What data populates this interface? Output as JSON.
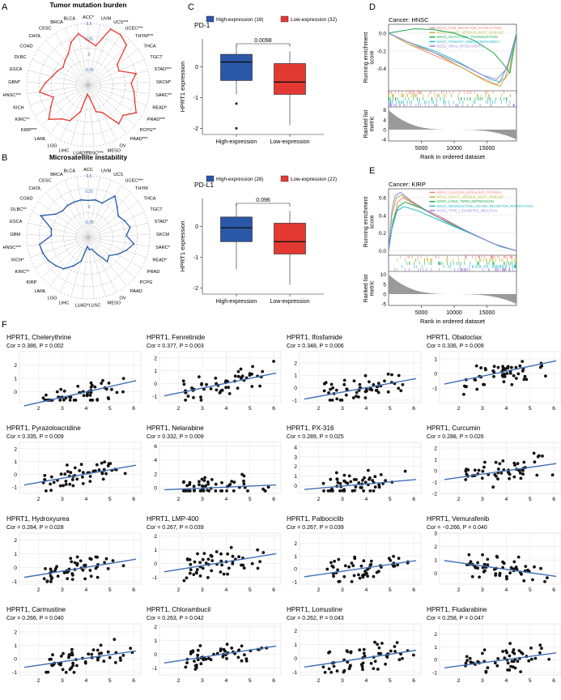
{
  "panel_labels": {
    "a": "A",
    "b": "B",
    "c": "C",
    "d": "D",
    "e": "E",
    "f": "F"
  },
  "colors": {
    "tmb": "#e8392f",
    "msi": "#2458a6",
    "high": "#2b57a7",
    "low": "#e23a33",
    "trend": "#3f6fb5",
    "grid": "#d9d9d9"
  },
  "chart_data": [
    {
      "id": "A",
      "type": "radar",
      "title": "Tumor mutation burden",
      "rings": [
        "0.5",
        "0.25",
        "0",
        "-0.25"
      ],
      "rlim": [
        -0.5,
        0.5
      ],
      "categories": [
        "ACC*",
        "UVM",
        "UCS***",
        "UCEC***",
        "THYM***",
        "THCA",
        "TGCT",
        "STAD***",
        "SKCM*",
        "SARC**",
        "READ*",
        "PRAD***",
        "PCPG**",
        "PAAD***",
        "OV",
        "MESO",
        "LUSC***",
        "LUAD***",
        "LIHC",
        "LGG",
        "LAML",
        "KIRP***",
        "KIRC**",
        "KICH",
        "HNSC***",
        "GBM*",
        "ESCA",
        "DLBC",
        "COAD",
        "CHOL",
        "CESC",
        "BRCA",
        "BLCA"
      ],
      "values": [
        0.22,
        0.15,
        0.48,
        0.47,
        0.4,
        0.08,
        0.05,
        0.3,
        0.2,
        0.25,
        0.3,
        0.4,
        0.25,
        0.3,
        0.0,
        -0.05,
        -0.3,
        -0.35,
        -0.05,
        0.15,
        0.2,
        0.35,
        0.2,
        0.1,
        0.3,
        0.2,
        0.1,
        0.05,
        0.0,
        0.05,
        0.1,
        0.25,
        0.35
      ]
    },
    {
      "id": "B",
      "type": "radar",
      "title": "Microsatellite instability",
      "rings": [
        "0.5",
        "0.25",
        "0",
        "-0.25"
      ],
      "rlim": [
        -0.5,
        0.5
      ],
      "categories": [
        "ACC",
        "UVM",
        "UCS",
        "UCEC***",
        "THYM",
        "THCA",
        "TGCT",
        "STAD*",
        "SKCM",
        "SARC*",
        "READ*",
        "PRAD",
        "PCPG",
        "PAAD",
        "OV",
        "MESO",
        "LUSC",
        "LUAD*",
        "LIHC",
        "LGG",
        "LAML",
        "KIRP",
        "KIRC**",
        "KICH*",
        "HNSC***",
        "GBM",
        "ESCA",
        "DLBC**",
        "COAD",
        "CHOL",
        "CESC",
        "BRCA",
        "BLCA"
      ],
      "values": [
        0.1,
        0.12,
        0.1,
        0.3,
        0.18,
        0.1,
        0.15,
        0.2,
        0.12,
        0.25,
        0.15,
        0.05,
        -0.05,
        0.0,
        -0.2,
        -0.3,
        -0.3,
        -0.35,
        -0.1,
        0.02,
        0.15,
        0.2,
        0.25,
        0.28,
        0.3,
        0.1,
        0.12,
        0.35,
        0.15,
        0.1,
        0.12,
        0.12,
        0.12
      ]
    },
    {
      "id": "C1",
      "type": "box",
      "title": "PD-1",
      "ylabel": "HPRT1 expression",
      "ylim": [
        -2.2,
        0.9
      ],
      "yticks": [
        0,
        -1,
        -2
      ],
      "pvalue": "0.0098",
      "legend": [
        "High-expression (16)",
        "Low-expression (32)"
      ],
      "categories": [
        "High-expression",
        "Low-expression"
      ],
      "boxes": [
        {
          "q1": -0.45,
          "median": 0.15,
          "q3": 0.4,
          "min": -0.9,
          "max": 0.7,
          "outliers": [
            -1.2,
            -2.0
          ]
        },
        {
          "q1": -0.9,
          "median": -0.5,
          "q3": 0.1,
          "min": -1.9,
          "max": 0.5,
          "outliers": []
        }
      ]
    },
    {
      "id": "C2",
      "type": "box",
      "title": "PD-L1",
      "ylabel": "HPRT1 expression",
      "ylim": [
        -2.2,
        0.9
      ],
      "yticks": [
        0,
        -1,
        -2
      ],
      "pvalue": "0.096",
      "legend": [
        "High-expression (26)",
        "Low-expression (22)"
      ],
      "categories": [
        "High-expression",
        "Low-expression"
      ],
      "boxes": [
        {
          "q1": -0.5,
          "median": -0.05,
          "q3": 0.3,
          "min": -1.4,
          "max": 0.75,
          "outliers": []
        },
        {
          "q1": -0.9,
          "median": -0.5,
          "q3": 0.1,
          "min": -1.9,
          "max": 0.5,
          "outliers": []
        }
      ]
    },
    {
      "id": "D",
      "type": "gsea",
      "title": "Cancer: HNSC",
      "ylabel_top": [
        "Running enrichment",
        "score"
      ],
      "ylabel_bottom": [
        "Ranked list",
        "metric"
      ],
      "xlabel": "Rank in ordered dataset",
      "xlim": [
        0,
        19500
      ],
      "xticks": [
        5000,
        10000,
        15000
      ],
      "ylim": [
        -0.65,
        0.1
      ],
      "yticks": [
        0.0,
        -0.2,
        -0.4
      ],
      "metric_ticks": [
        8,
        4,
        0,
        -4
      ],
      "series": [
        {
          "name": "KEGG_ECM_RECEPTOR_INTERACTION",
          "color": "#f2827d",
          "points": [
            [
              0,
              0
            ],
            [
              3000,
              -0.12
            ],
            [
              7000,
              -0.25
            ],
            [
              11000,
              -0.38
            ],
            [
              14000,
              -0.5
            ],
            [
              16500,
              -0.58
            ],
            [
              17800,
              -0.5
            ],
            [
              19500,
              0
            ]
          ]
        },
        {
          "name": "KEGG_GRAFT_VERSUS_HOST_DISEASE",
          "color": "#b8b834",
          "points": [
            [
              0,
              0
            ],
            [
              3000,
              -0.12
            ],
            [
              7000,
              -0.22
            ],
            [
              11000,
              -0.38
            ],
            [
              15000,
              -0.55
            ],
            [
              17000,
              -0.6
            ],
            [
              18300,
              -0.45
            ],
            [
              19500,
              0
            ]
          ]
        },
        {
          "name": "KEGG_OLFACTORY_TRANSDUCTION",
          "color": "#1eaa4e",
          "points": [
            [
              0,
              0
            ],
            [
              1500,
              0.02
            ],
            [
              4000,
              0.05
            ],
            [
              7000,
              0.04
            ],
            [
              10000,
              0.0
            ],
            [
              13000,
              -0.08
            ],
            [
              16000,
              -0.22
            ],
            [
              17500,
              -0.35
            ],
            [
              18500,
              -0.45
            ],
            [
              19500,
              0
            ]
          ]
        },
        {
          "name": "KEGG_PRIMARY_IMMUNODEFICIENCY",
          "color": "#25b9c6",
          "points": [
            [
              0,
              0
            ],
            [
              3000,
              -0.1
            ],
            [
              7000,
              -0.2
            ],
            [
              10000,
              -0.3
            ],
            [
              13000,
              -0.42
            ],
            [
              15500,
              -0.52
            ],
            [
              17000,
              -0.55
            ],
            [
              18500,
              -0.3
            ],
            [
              19500,
              0
            ]
          ]
        },
        {
          "name": "KEGG_VIRAL_MYOCARDITIS",
          "color": "#9a82d8",
          "points": [
            [
              0,
              0
            ],
            [
              3000,
              -0.1
            ],
            [
              7000,
              -0.22
            ],
            [
              11000,
              -0.35
            ],
            [
              14500,
              -0.48
            ],
            [
              16500,
              -0.52
            ],
            [
              18000,
              -0.4
            ],
            [
              19500,
              0
            ]
          ]
        }
      ]
    },
    {
      "id": "E",
      "type": "gsea",
      "title": "Cancer: KIRP",
      "ylabel_top": [
        "Running enrichment",
        "score"
      ],
      "ylabel_bottom": [
        "Ranked list",
        "metric"
      ],
      "xlabel": "Rank in ordered dataset",
      "xlim": [
        0,
        19500
      ],
      "xticks": [
        5000,
        10000,
        15000
      ],
      "ylim": [
        -0.05,
        0.7
      ],
      "yticks": [
        0.6,
        0.4,
        0.2,
        0.0
      ],
      "metric_ticks": [
        10,
        5,
        0,
        -5
      ],
      "series": [
        {
          "name": "KEGG_CALCIUM_SIGNALING_PATHWAY",
          "color": "#f2827d",
          "points": [
            [
              0,
              0
            ],
            [
              600,
              0.3
            ],
            [
              1400,
              0.55
            ],
            [
              2200,
              0.6
            ],
            [
              4000,
              0.52
            ],
            [
              8000,
              0.38
            ],
            [
              12000,
              0.22
            ],
            [
              16000,
              0.08
            ],
            [
              19500,
              0
            ]
          ]
        },
        {
          "name": "KEGG_GRAFT_VERSUS_HOST_DISEASE",
          "color": "#b8b834",
          "points": [
            [
              0,
              0
            ],
            [
              500,
              0.4
            ],
            [
              1200,
              0.6
            ],
            [
              2000,
              0.63
            ],
            [
              3500,
              0.55
            ],
            [
              7000,
              0.4
            ],
            [
              12000,
              0.22
            ],
            [
              16000,
              0.08
            ],
            [
              19500,
              0
            ]
          ]
        },
        {
          "name": "KEGG_LONG_TERM_DEPRESSION",
          "color": "#1eaa4e",
          "points": [
            [
              0,
              0
            ],
            [
              700,
              0.35
            ],
            [
              1500,
              0.5
            ],
            [
              2500,
              0.55
            ],
            [
              5000,
              0.48
            ],
            [
              9000,
              0.32
            ],
            [
              13000,
              0.18
            ],
            [
              17000,
              0.05
            ],
            [
              19500,
              0
            ]
          ]
        },
        {
          "name": "KEGG_NEUROACTIVE_LIGAND_RECEPTOR_INTERACTION",
          "color": "#25b9c6",
          "points": [
            [
              0,
              0
            ],
            [
              500,
              0.25
            ],
            [
              1300,
              0.45
            ],
            [
              2300,
              0.5
            ],
            [
              4500,
              0.45
            ],
            [
              8500,
              0.32
            ],
            [
              13000,
              0.18
            ],
            [
              17000,
              0.05
            ],
            [
              19500,
              0
            ]
          ]
        },
        {
          "name": "KEGG_TYPE_I_DIABETES_MELLITUS",
          "color": "#9a82d8",
          "points": [
            [
              0,
              0
            ],
            [
              500,
              0.45
            ],
            [
              1000,
              0.62
            ],
            [
              1800,
              0.66
            ],
            [
              3500,
              0.56
            ],
            [
              7000,
              0.4
            ],
            [
              12000,
              0.22
            ],
            [
              16000,
              0.08
            ],
            [
              19500,
              0
            ]
          ]
        }
      ]
    },
    {
      "id": "F",
      "type": "scatter_grid",
      "xlim": [
        1.2,
        6.3
      ],
      "xticks": [
        2,
        3,
        4,
        5,
        6
      ],
      "plots": [
        {
          "title": "HPRT1, Chelerythrine",
          "stat": "Cor = 0.386, P = 0.002",
          "ylim": [
            -0.8,
            3.0
          ],
          "yticks": [
            0,
            1,
            2
          ],
          "slope": 0.4,
          "intercept": -1.6,
          "seed": 11
        },
        {
          "title": "HPRT1, Fenretinide",
          "stat": "Cor = 0.377, P = 0.003",
          "ylim": [
            -1.5,
            2.5
          ],
          "yticks": [
            -1,
            0,
            1,
            2
          ],
          "slope": 0.38,
          "intercept": -1.5,
          "seed": 12
        },
        {
          "title": "HPRT1, Ifosfamide",
          "stat": "Cor = 0.348, P = 0.006",
          "ylim": [
            -1.2,
            2.9
          ],
          "yticks": [
            -1,
            0,
            1,
            2
          ],
          "slope": 0.35,
          "intercept": -1.4,
          "seed": 13
        },
        {
          "title": "HPRT1, Obatoclax",
          "stat": "Cor = 0.336, P = 0.009",
          "ylim": [
            -2.0,
            1.5
          ],
          "yticks": [
            -1,
            0,
            1
          ],
          "slope": 0.34,
          "intercept": -1.2,
          "seed": 14
        },
        {
          "title": "HPRT1, Pyrazoloacridine",
          "stat": "Cor = 0.335, P = 0.009",
          "ylim": [
            -1.5,
            2.5
          ],
          "yticks": [
            -1,
            0,
            1,
            2
          ],
          "slope": 0.33,
          "intercept": -1.3,
          "seed": 15
        },
        {
          "title": "HPRT1, Nelarabine",
          "stat": "Cor = 0.332, P = 0.009",
          "ylim": [
            -0.8,
            6.5
          ],
          "yticks": [
            0,
            2,
            4,
            6
          ],
          "slope": 0.15,
          "intercept": -0.5,
          "seed": 16
        },
        {
          "title": "HPRT1, PX-316",
          "stat": "Cor = 0.289, P = 0.025",
          "ylim": [
            -0.8,
            4.5
          ],
          "yticks": [
            0,
            1,
            2,
            3,
            4
          ],
          "slope": 0.22,
          "intercept": -0.7,
          "seed": 17
        },
        {
          "title": "HPRT1, Curcumin",
          "stat": "Cor = 0.288, P = 0.026",
          "ylim": [
            -2.0,
            2.5
          ],
          "yticks": [
            -2,
            -1,
            0,
            1,
            2
          ],
          "slope": 0.3,
          "intercept": -1.2,
          "seed": 18
        },
        {
          "title": "HPRT1, Hydroxyurea",
          "stat": "Cor = 0.284, P = 0.028",
          "ylim": [
            -1.2,
            2.5
          ],
          "yticks": [
            -1,
            0,
            1,
            2
          ],
          "slope": 0.28,
          "intercept": -1.1,
          "seed": 19
        },
        {
          "title": "HPRT1, LMP-400",
          "stat": "Cor = 0.267, P = 0.039",
          "ylim": [
            -1.5,
            2.2
          ],
          "yticks": [
            -1,
            0,
            1,
            2
          ],
          "slope": 0.28,
          "intercept": -1.0,
          "seed": 20
        },
        {
          "title": "HPRT1, Palbociclib",
          "stat": "Cor = 0.267, P = 0.039",
          "ylim": [
            -1.2,
            2.8
          ],
          "yticks": [
            -1,
            0,
            1,
            2
          ],
          "slope": 0.27,
          "intercept": -1.0,
          "seed": 21
        },
        {
          "title": "HPRT1, Vemurafenib",
          "stat": "Cor = −0.266, P = 0.040",
          "ylim": [
            -0.8,
            3.0
          ],
          "yticks": [
            0,
            1,
            2,
            3
          ],
          "slope": -0.25,
          "intercept": 1.3,
          "seed": 22
        },
        {
          "title": "HPRT1, Carmustine",
          "stat": "Cor = 0.266, P = 0.040",
          "ylim": [
            -1.2,
            2.6
          ],
          "yticks": [
            -1,
            0,
            1,
            2
          ],
          "slope": 0.26,
          "intercept": -1.0,
          "seed": 23
        },
        {
          "title": "HPRT1, Chlorambucil",
          "stat": "Cor = 0.263, P = 0.042",
          "ylim": [
            -1.5,
            2.2
          ],
          "yticks": [
            -1,
            0,
            1,
            2
          ],
          "slope": 0.26,
          "intercept": -1.0,
          "seed": 24
        },
        {
          "title": "HPRT1, Lomustine",
          "stat": "Cor = 0.262, P = 0.043",
          "ylim": [
            -1.2,
            2.5
          ],
          "yticks": [
            -1,
            0,
            1,
            2
          ],
          "slope": 0.26,
          "intercept": -1.0,
          "seed": 25
        },
        {
          "title": "HPRT1, Fludarabine",
          "stat": "Cor = 0.258, P = 0.047",
          "ylim": [
            -1.2,
            2.8
          ],
          "yticks": [
            -1,
            0,
            1,
            2
          ],
          "slope": 0.25,
          "intercept": -1.0,
          "seed": 26
        }
      ]
    }
  ]
}
